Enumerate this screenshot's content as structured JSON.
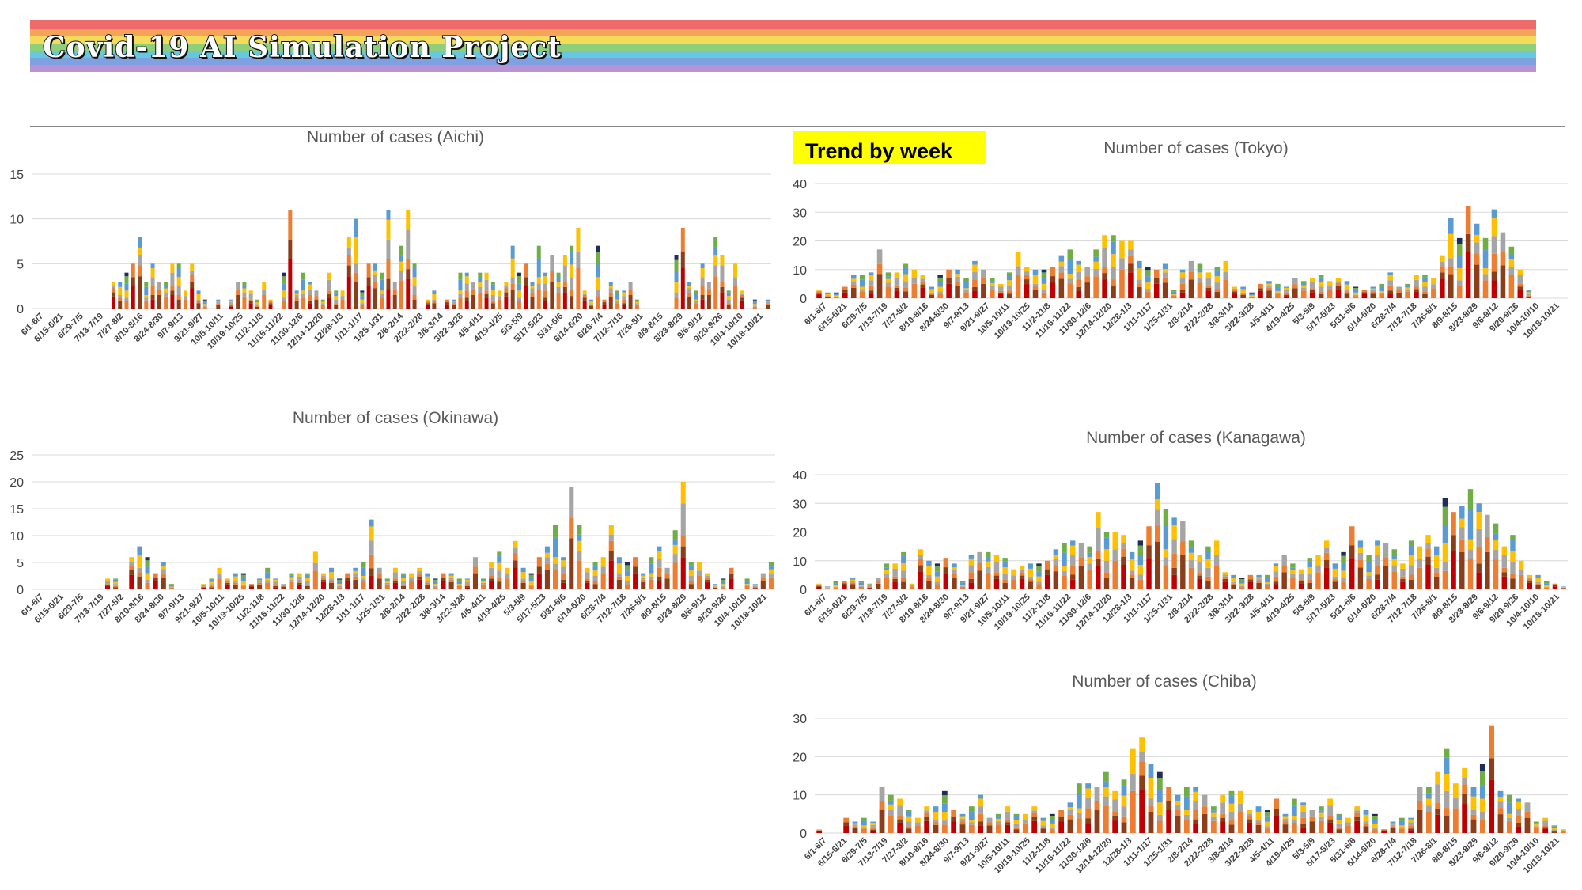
{
  "banner": {
    "title": "Covid-19 AI Simulation Project"
  },
  "trend_label": "Trend by week",
  "colors": {
    "stripes": [
      "#ef6a6a",
      "#f6a25a",
      "#f4dc5a",
      "#8fcf7a",
      "#67c7dc",
      "#7ea1e2",
      "#b894d6"
    ],
    "segments": [
      "#c00000",
      "#8c3d1a",
      "#ed7d31",
      "#a5a5a5",
      "#ffc000",
      "#5b9bd5",
      "#70ad47",
      "#1f2d5a"
    ],
    "divider": "#888888",
    "gridline": "#d9d9d9",
    "highlight": "#ffff00"
  },
  "week_labels": [
    "6/1-6/7",
    "6/15-6/21",
    "6/29-7/5",
    "7/13-7/19",
    "7/27-8/2",
    "8/10-8/16",
    "8/24-8/30",
    "9/7-9/13",
    "9/21-9/27",
    "10/5-10/11",
    "10/19-10/25",
    "11/2-11/8",
    "11/16-11/22",
    "11/30-12/6",
    "12/14-12/20",
    "12/28-1/3",
    "1/11-1/17",
    "1/25-1/31",
    "2/8-2/14",
    "2/22-2/28",
    "3/8-3/14",
    "3/22-3/28",
    "4/5-4/11",
    "4/19-4/25",
    "5/3-5/9",
    "5/17-5/23",
    "5/31-6/6",
    "6/14-6/20",
    "6/28-7/4",
    "7/12-7/18",
    "7/26-8/1",
    "8/9-8/15",
    "8/23-8/29",
    "9/6-9/12",
    "9/20-9/26",
    "10/4-10/10",
    "10/18-10/21"
  ],
  "chart_data": [
    {
      "type": "bar",
      "stacked": true,
      "title": "Number of cases (Aichi)",
      "ylim": [
        0,
        15
      ],
      "yticks": [
        0,
        5,
        10,
        15
      ],
      "grid": true,
      "totals": [
        0,
        0,
        0,
        0,
        0,
        0,
        0,
        0,
        0,
        0,
        0,
        0,
        3,
        3,
        4,
        5,
        8,
        3,
        5,
        3,
        3,
        5,
        5,
        2,
        5,
        2,
        1,
        0,
        1,
        0,
        1,
        3,
        3,
        2,
        1,
        3,
        1,
        0,
        4,
        11,
        2,
        4,
        3,
        2,
        1,
        4,
        2,
        2,
        8,
        10,
        2,
        5,
        5,
        4,
        11,
        3,
        7,
        11,
        5,
        0,
        1,
        2,
        0,
        1,
        1,
        4,
        4,
        3,
        4,
        4,
        3,
        2,
        3,
        7,
        4,
        5,
        3,
        7,
        4,
        6,
        4,
        6,
        7,
        9,
        2,
        1,
        7,
        1,
        3,
        2,
        2,
        3,
        1,
        0,
        0,
        0,
        0,
        0,
        6,
        9,
        3,
        2,
        5,
        3,
        8,
        6,
        2,
        5,
        2,
        0,
        1,
        0,
        1
      ],
      "series_colors_ref": "colors.segments"
    },
    {
      "type": "bar",
      "stacked": true,
      "title": "Number of cases (Tokyo)",
      "ylim": [
        0,
        40
      ],
      "yticks": [
        0,
        10,
        20,
        30,
        40
      ],
      "grid": true,
      "totals": [
        3,
        2,
        2,
        4,
        8,
        8,
        9,
        17,
        9,
        9,
        12,
        10,
        8,
        4,
        8,
        10,
        10,
        7,
        13,
        10,
        7,
        5,
        9,
        16,
        11,
        10,
        10,
        11,
        15,
        17,
        13,
        11,
        17,
        22,
        22,
        20,
        20,
        13,
        11,
        10,
        12,
        3,
        10,
        13,
        12,
        9,
        11,
        13,
        4,
        4,
        2,
        5,
        6,
        5,
        4,
        7,
        6,
        7,
        8,
        6,
        7,
        6,
        4,
        3,
        4,
        5,
        9,
        4,
        5,
        8,
        8,
        7,
        15,
        28,
        21,
        32,
        26,
        21,
        31,
        23,
        18,
        10,
        3,
        0,
        0,
        0,
        0
      ],
      "series_colors_ref": "colors.segments"
    },
    {
      "type": "bar",
      "stacked": true,
      "title": "Number of cases (Okinawa)",
      "ylim": [
        0,
        25
      ],
      "yticks": [
        0,
        5,
        10,
        15,
        20,
        25
      ],
      "grid": true,
      "totals": [
        0,
        0,
        0,
        0,
        0,
        0,
        0,
        0,
        0,
        2,
        2,
        0,
        6,
        8,
        6,
        3,
        5,
        1,
        0,
        0,
        0,
        1,
        2,
        4,
        2,
        3,
        3,
        1,
        2,
        4,
        2,
        1,
        3,
        3,
        3,
        7,
        3,
        4,
        2,
        3,
        4,
        5,
        13,
        4,
        2,
        4,
        3,
        3,
        4,
        3,
        2,
        3,
        3,
        2,
        2,
        6,
        2,
        5,
        7,
        4,
        9,
        4,
        3,
        6,
        8,
        12,
        6,
        19,
        12,
        4,
        5,
        6,
        12,
        6,
        5,
        6,
        3,
        6,
        8,
        4,
        11,
        20,
        5,
        5,
        3,
        1,
        2,
        4,
        0,
        2,
        1,
        3,
        5
      ],
      "series_colors_ref": "colors.segments"
    },
    {
      "type": "bar",
      "stacked": true,
      "title": "Number of cases (Kanagawa)",
      "ylim": [
        0,
        40
      ],
      "yticks": [
        0,
        10,
        20,
        30,
        40
      ],
      "grid": true,
      "totals": [
        2,
        1,
        3,
        3,
        4,
        3,
        2,
        4,
        9,
        9,
        13,
        2,
        14,
        10,
        9,
        11,
        9,
        3,
        12,
        13,
        13,
        12,
        11,
        7,
        8,
        9,
        9,
        10,
        14,
        16,
        17,
        16,
        15,
        27,
        20,
        20,
        19,
        13,
        17,
        22,
        37,
        28,
        25,
        24,
        17,
        12,
        15,
        17,
        6,
        5,
        4,
        5,
        5,
        5,
        9,
        12,
        9,
        7,
        11,
        12,
        17,
        9,
        13,
        22,
        17,
        12,
        17,
        16,
        14,
        9,
        17,
        15,
        19,
        15,
        32,
        27,
        29,
        35,
        30,
        26,
        23,
        15,
        19,
        10,
        5,
        5,
        3,
        2,
        1
      ],
      "series_colors_ref": "colors.segments"
    },
    {
      "type": "bar",
      "stacked": true,
      "title": "Number of cases (Chiba)",
      "ylim": [
        0,
        30
      ],
      "yticks": [
        0,
        10,
        20,
        30
      ],
      "grid": true,
      "totals": [
        1,
        0,
        0,
        4,
        3,
        4,
        3,
        12,
        10,
        9,
        6,
        4,
        7,
        7,
        11,
        6,
        5,
        7,
        10,
        4,
        5,
        7,
        5,
        5,
        7,
        4,
        5,
        6,
        8,
        13,
        13,
        12,
        16,
        11,
        14,
        22,
        25,
        18,
        16,
        12,
        10,
        12,
        12,
        10,
        7,
        10,
        11,
        11,
        6,
        7,
        6,
        9,
        5,
        9,
        8,
        6,
        7,
        9,
        5,
        4,
        7,
        6,
        5,
        1,
        3,
        4,
        4,
        12,
        12,
        16,
        22,
        13,
        17,
        12,
        18,
        28,
        11,
        10,
        9,
        8,
        3,
        4,
        2,
        1
      ],
      "series_colors_ref": "colors.segments"
    }
  ]
}
